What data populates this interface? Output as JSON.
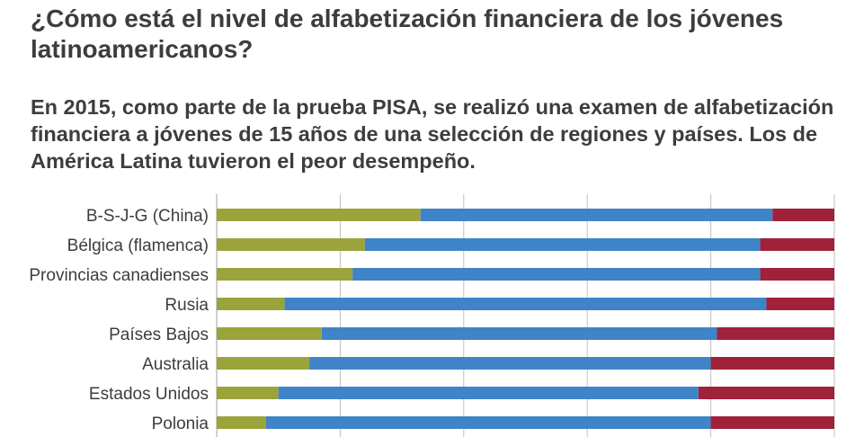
{
  "header": {
    "title": "¿Cómo está el nivel de alfabetización financiera de los jóvenes latinoamericanos?",
    "subtitle": "En 2015, como parte de la prueba PISA, se realizó una examen de alfabetización financiera a jóvenes de 15 años de una selección de regiones y países. Los de América Latina tuvieron el peor desempeño."
  },
  "colors": {
    "segment_1": "#9ba33b",
    "segment_2": "#3f84c8",
    "segment_3": "#a0213a",
    "gridline": "#bfbfbf"
  },
  "chart_data": {
    "type": "bar",
    "orientation": "horizontal",
    "stacked": true,
    "percent": true,
    "title": "",
    "xlabel": "",
    "ylabel": "",
    "xlim": [
      0,
      100
    ],
    "grid": true,
    "categories": [
      "B-S-J-G (China)",
      "Bélgica (flamenca)",
      "Provincias canadienses",
      "Rusia",
      "Países Bajos",
      "Australia",
      "Estados Unidos",
      "Polonia"
    ],
    "series": [
      {
        "values": [
          33,
          24,
          22,
          11,
          17,
          15,
          10,
          8
        ]
      },
      {
        "values": [
          57,
          64,
          66,
          78,
          64,
          65,
          68,
          72
        ]
      },
      {
        "values": [
          10,
          12,
          12,
          11,
          19,
          20,
          22,
          20
        ]
      }
    ]
  }
}
